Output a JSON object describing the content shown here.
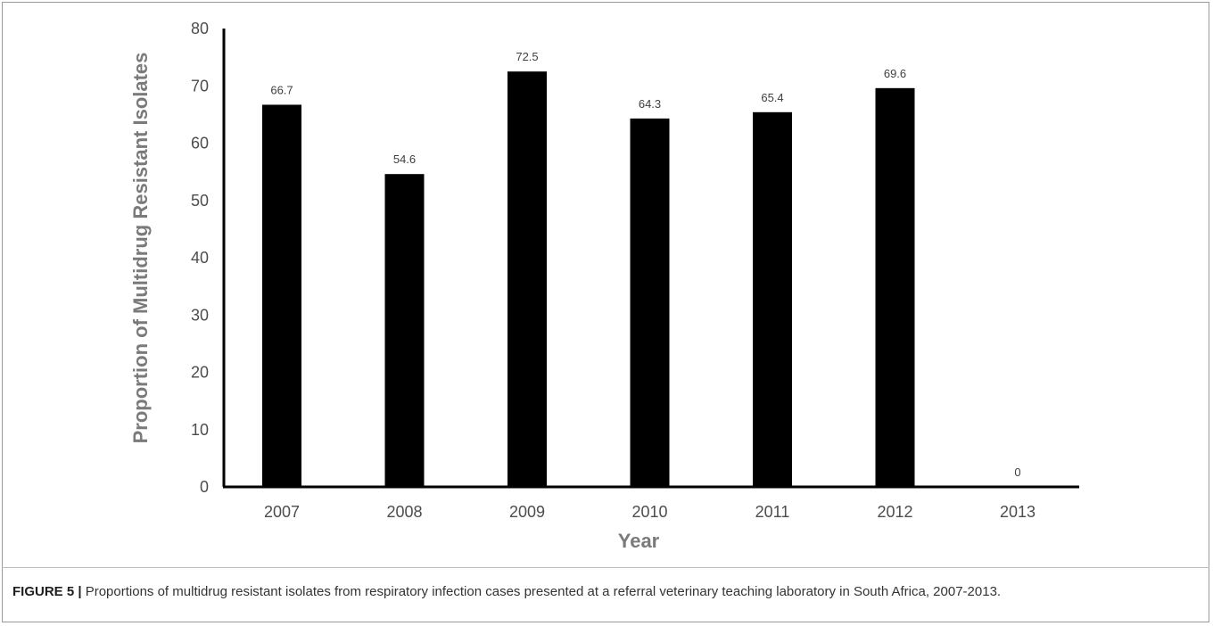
{
  "chart_data": {
    "type": "bar",
    "categories": [
      "2007",
      "2008",
      "2009",
      "2010",
      "2011",
      "2012",
      "2013"
    ],
    "values": [
      66.7,
      54.6,
      72.5,
      64.3,
      65.4,
      69.6,
      0
    ],
    "data_labels": [
      "66.7",
      "54.6",
      "72.5",
      "64.3",
      "65.4",
      "69.6",
      "0"
    ],
    "xlabel": "Year",
    "ylabel": "Proportion of Multidrug Resistant Isolates",
    "ylim": [
      0,
      80
    ],
    "yticks": [
      "0",
      "10",
      "20",
      "30",
      "40",
      "50",
      "60",
      "70",
      "80"
    ],
    "grid": false,
    "bar_color": "#000000"
  },
  "caption": {
    "label": "FIGURE 5 |",
    "text": "Proportions of multidrug resistant isolates from respiratory infection cases presented at a referral veterinary teaching laboratory in South Africa, 2007-2013."
  }
}
